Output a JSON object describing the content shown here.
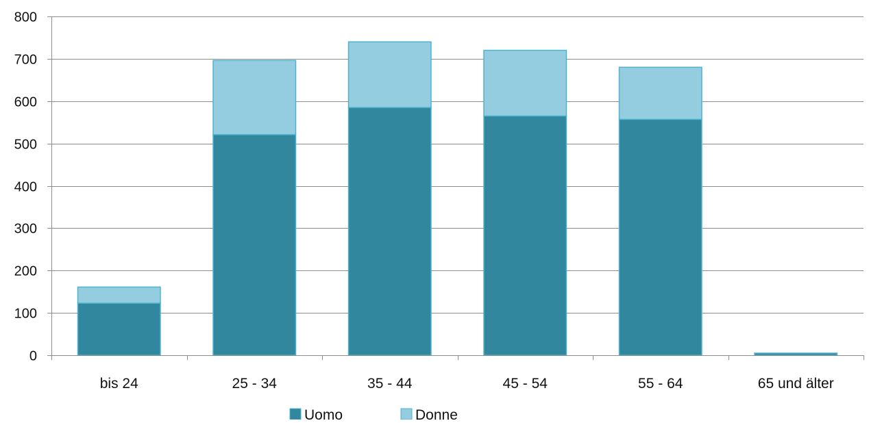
{
  "chart_data": {
    "type": "bar",
    "stacked": true,
    "categories": [
      "bis 24",
      "25 - 34",
      "35 - 44",
      "45 - 54",
      "55 - 64",
      "65 und älter"
    ],
    "series": [
      {
        "name": "Uomo",
        "color": "#31879e",
        "values": [
          123,
          521,
          585,
          565,
          557,
          5
        ]
      },
      {
        "name": "Donne",
        "color": "#94cddf",
        "values": [
          38,
          175,
          155,
          155,
          123,
          0
        ]
      }
    ],
    "title": "",
    "xlabel": "",
    "ylabel": "",
    "ylim": [
      0,
      800
    ],
    "yticks": [
      0,
      100,
      200,
      300,
      400,
      500,
      600,
      700,
      800
    ],
    "grid": true,
    "legend_position": "bottom"
  }
}
